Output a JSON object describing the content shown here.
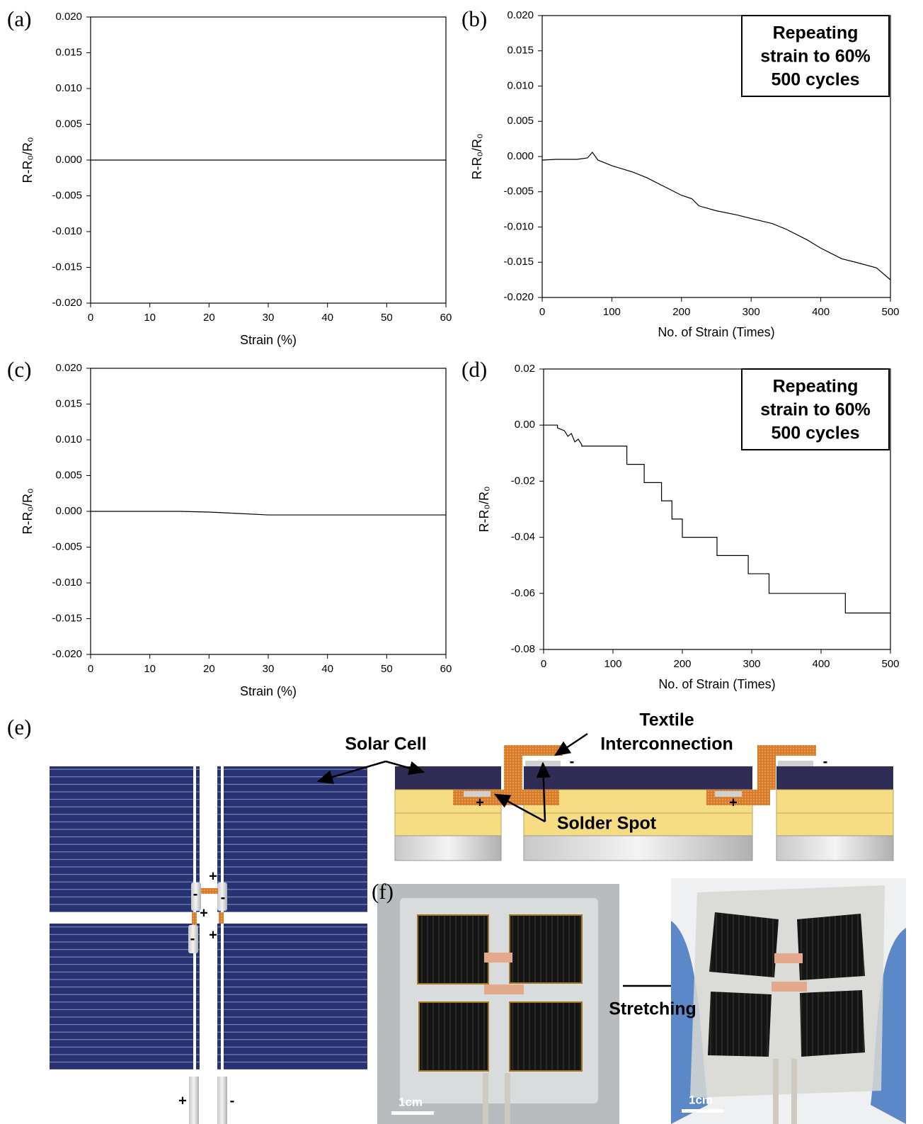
{
  "chart_data": [
    {
      "type": "line",
      "panel": "(a)",
      "x_label": "Strain (%)",
      "y_label": "R-R₀/R₀",
      "color": "#000000",
      "x": [
        0,
        60
      ],
      "values": [
        0,
        0
      ],
      "xlim": [
        0,
        60
      ],
      "xticks": [
        0,
        10,
        20,
        30,
        40,
        50,
        60
      ],
      "ylim": [
        -0.02,
        0.02
      ],
      "yticks": [
        {
          "value": -0.02,
          "label": "-0.020"
        },
        -0.015,
        {
          "value": -0.01,
          "label": "-0.010"
        },
        -0.005,
        {
          "value": 0,
          "label": "0.000"
        },
        0.005,
        {
          "value": 0.01,
          "label": "0.010"
        },
        0.015,
        {
          "value": 0.02,
          "label": "0.020"
        }
      ]
    },
    {
      "type": "line",
      "panel": "(b)",
      "x_label": "No. of Strain (Times)",
      "y_label": "R-R₀/R₀",
      "color": "#000000",
      "annotation": [
        "Repeating",
        "strain to 60%",
        "500 cycles"
      ],
      "x": [
        0,
        20,
        50,
        65,
        72,
        80,
        100,
        130,
        150,
        180,
        200,
        215,
        225,
        250,
        280,
        300,
        330,
        350,
        380,
        400,
        430,
        450,
        480,
        500
      ],
      "values": [
        -0.0005,
        -0.0004,
        -0.0004,
        -0.0002,
        0.0006,
        -0.0005,
        -0.0013,
        -0.0022,
        -0.003,
        -0.0045,
        -0.0055,
        -0.006,
        -0.007,
        -0.0077,
        -0.0083,
        -0.0088,
        -0.0095,
        -0.0103,
        -0.0118,
        -0.013,
        -0.0145,
        -0.015,
        -0.0158,
        -0.0175
      ],
      "xlim": [
        0,
        500
      ],
      "xticks": [
        0,
        100,
        200,
        300,
        400,
        500
      ],
      "ylim": [
        -0.02,
        0.02
      ],
      "yticks": [
        {
          "value": -0.02,
          "label": "-0.020"
        },
        -0.015,
        {
          "value": -0.01,
          "label": "-0.010"
        },
        -0.005,
        {
          "value": 0,
          "label": "0.000"
        },
        0.005,
        {
          "value": 0.01,
          "label": "0.010"
        },
        0.015,
        {
          "value": 0.02,
          "label": "0.020"
        }
      ]
    },
    {
      "type": "line",
      "panel": "(c)",
      "x_label": "Strain (%)",
      "y_label": "R-R₀/R₀",
      "color": "#000000",
      "x": [
        0,
        10,
        15,
        20,
        25,
        30,
        40,
        50,
        60
      ],
      "values": [
        0,
        0,
        0,
        -0.0001,
        -0.0003,
        -0.0005,
        -0.0005,
        -0.0005,
        -0.0005
      ],
      "xlim": [
        0,
        60
      ],
      "xticks": [
        0,
        10,
        20,
        30,
        40,
        50,
        60
      ],
      "ylim": [
        -0.02,
        0.02
      ],
      "yticks": [
        {
          "value": -0.02,
          "label": "-0.020"
        },
        -0.015,
        {
          "value": -0.01,
          "label": "-0.010"
        },
        -0.005,
        {
          "value": 0,
          "label": "0.000"
        },
        0.005,
        {
          "value": 0.01,
          "label": "0.010"
        },
        0.015,
        {
          "value": 0.02,
          "label": "0.020"
        }
      ]
    },
    {
      "type": "line",
      "panel": "(d)",
      "x_label": "No. of Strain (Times)",
      "y_label": "R-R₀/R₀",
      "color": "#000000",
      "annotation": [
        "Repeating",
        "strain to 60%",
        "500 cycles"
      ],
      "x": [
        0,
        20,
        20,
        30,
        35,
        40,
        45,
        50,
        55,
        55,
        120,
        120,
        145,
        145,
        170,
        170,
        185,
        185,
        200,
        200,
        250,
        250,
        295,
        295,
        325,
        325,
        435,
        435,
        500
      ],
      "values": [
        0,
        0,
        -0.001,
        -0.002,
        -0.004,
        -0.003,
        -0.006,
        -0.005,
        -0.007,
        -0.0075,
        -0.0075,
        -0.014,
        -0.014,
        -0.0205,
        -0.0205,
        -0.027,
        -0.027,
        -0.0335,
        -0.0335,
        -0.04,
        -0.04,
        -0.0465,
        -0.0465,
        -0.053,
        -0.053,
        -0.06,
        -0.06,
        -0.067,
        -0.067
      ],
      "xlim": [
        0,
        500
      ],
      "xticks": [
        0,
        100,
        200,
        300,
        400,
        500
      ],
      "ylim": [
        -0.08,
        0.02
      ],
      "yticks": [
        -0.08,
        -0.06,
        -0.04,
        -0.02,
        {
          "value": 0,
          "label": "0.00"
        },
        0.02
      ]
    }
  ],
  "figure": {
    "panel_e": "(e)",
    "panel_f": "(f)",
    "solar_cell": "Solar Cell",
    "textile": [
      "Textile",
      "Interconnection"
    ],
    "solder": "Solder Spot",
    "plus": "+",
    "minus": "-",
    "scale": "1cm",
    "stretching": "Stretching"
  }
}
